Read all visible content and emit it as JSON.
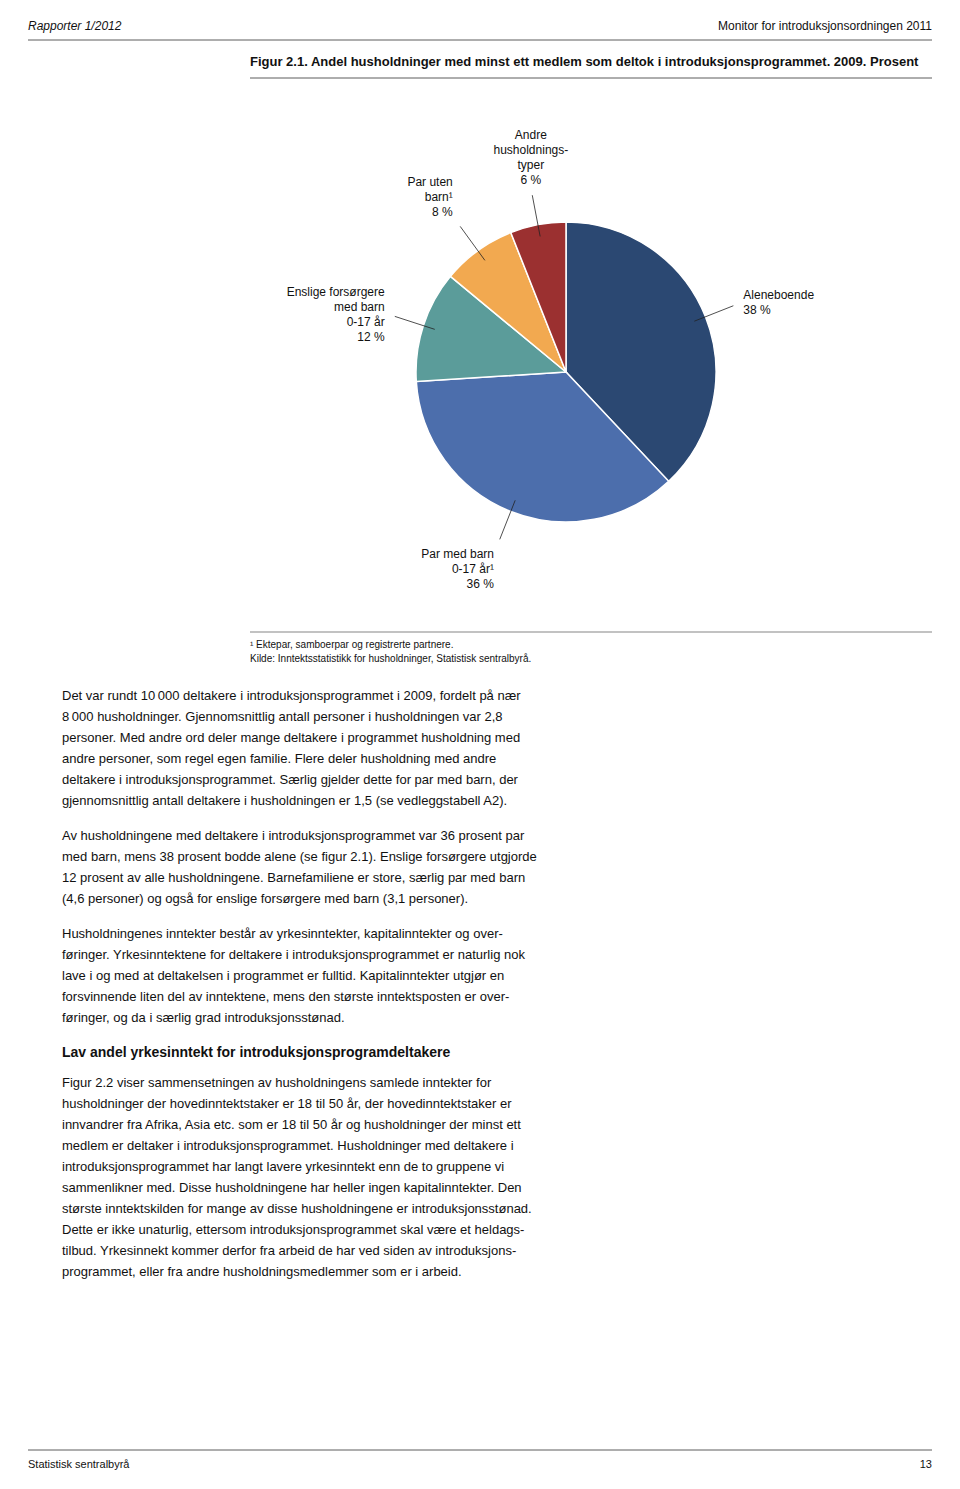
{
  "chart_data": {
    "type": "pie",
    "title": "Figur 2.1. Andel husholdninger med minst ett medlem som deltok i introduksjonsprogrammet. 2009. Prosent",
    "categories": [
      "Aleneboende",
      "Par med barn\n0-17 år¹",
      "Enslige forsørgere\nmed barn\n0-17 år",
      "Par uten\nbarn¹",
      "Andre\nhusholdnings-\ntyper"
    ],
    "values": [
      38,
      36,
      12,
      8,
      6
    ],
    "value_labels": [
      "38 %",
      "36 %",
      "12 %",
      "8 %",
      "6 %"
    ],
    "colors": [
      "#2B4872",
      "#4C6EAC",
      "#5B9C9A",
      "#F2A950",
      "#9B3030"
    ],
    "data_labels": true,
    "annotations": [
      "¹ Ektepar, samboerpar og registrerte partnere.",
      "Kilde: Inntektsstatistikk for husholdninger, Statistisk sentralbyrå."
    ]
  },
  "page": {
    "header_left": "Rapporter 1/2012",
    "header_right": "Monitor for introduksjonsordningen 2011",
    "paragraphs": [
      "Det var rundt 10 000 deltakere i introduksjonsprogrammet i 2009, fordelt på nær\n8 000 husholdninger. Gjennomsnittlig antall personer i husholdningen var 2,8\npersoner. Med andre ord deler mange deltakere i programmet husholdning med\nandre personer, som regel egen familie. Flere deler husholdning med andre\ndeltakere i introduksjonsprogrammet. Særlig gjelder dette for par med barn, der\ngjennomsnittlig antall deltakere i husholdningen er 1,5 (se vedleggstabell A2).",
      "Av husholdningene med deltakere i introduksjonsprogrammet var 36 prosent par\nmed barn, mens 38 prosent bodde alene (se figur 2.1). Enslige forsørgere utgjorde\n12 prosent av alle husholdningene. Barnefamiliene er store, særlig par med barn\n(4,6 personer) og også for enslige forsørgere med barn (3,1 personer).",
      "Husholdningenes inntekter består av yrkesinntekter, kapitalinntekter og over-\nføringer. Yrkesinntektene for deltakere i introduksjonsprogrammet er naturlig nok\nlave i og med at deltakelsen i programmet er fulltid. Kapitalinntekter utgjør en\nforsvinnende liten del av inntektene, mens den største inntektsposten er over-\nføringer, og da i særlig grad introduksjonsstønad."
    ],
    "heading": "Lav andel yrkesinntekt for introduksjonsprogramdeltakere",
    "paragraph_after_heading": "Figur 2.2 viser sammensetningen av husholdningens samlede inntekter for\nhusholdninger der hovedinntektstaker er 18 til 50 år, der hovedinntektstaker er\ninnvandrer fra Afrika, Asia etc. som er 18 til 50 år og husholdninger der minst ett\nmedlem er deltaker i introduksjonsprogrammet. Husholdninger med deltakere i\nintroduksjonsprogrammet har langt lavere yrkesinntekt enn de to gruppene vi\nsammenlikner med. Disse husholdningene har heller ingen kapitalinntekter. Den\nstørste inntektskilden for mange av disse husholdningene er introduksjonsstønad.\nDette er ikke unaturlig, ettersom introduksjonsprogrammet skal være et heldags-\ntilbud. Yrkesinnekt kommer derfor fra arbeid de har ved siden av introduksjons-\nprogrammet, eller fra andre husholdningsmedlemmer som er i arbeid.",
    "footer_left": "Statistisk sentralbyrå",
    "footer_right": "13"
  }
}
